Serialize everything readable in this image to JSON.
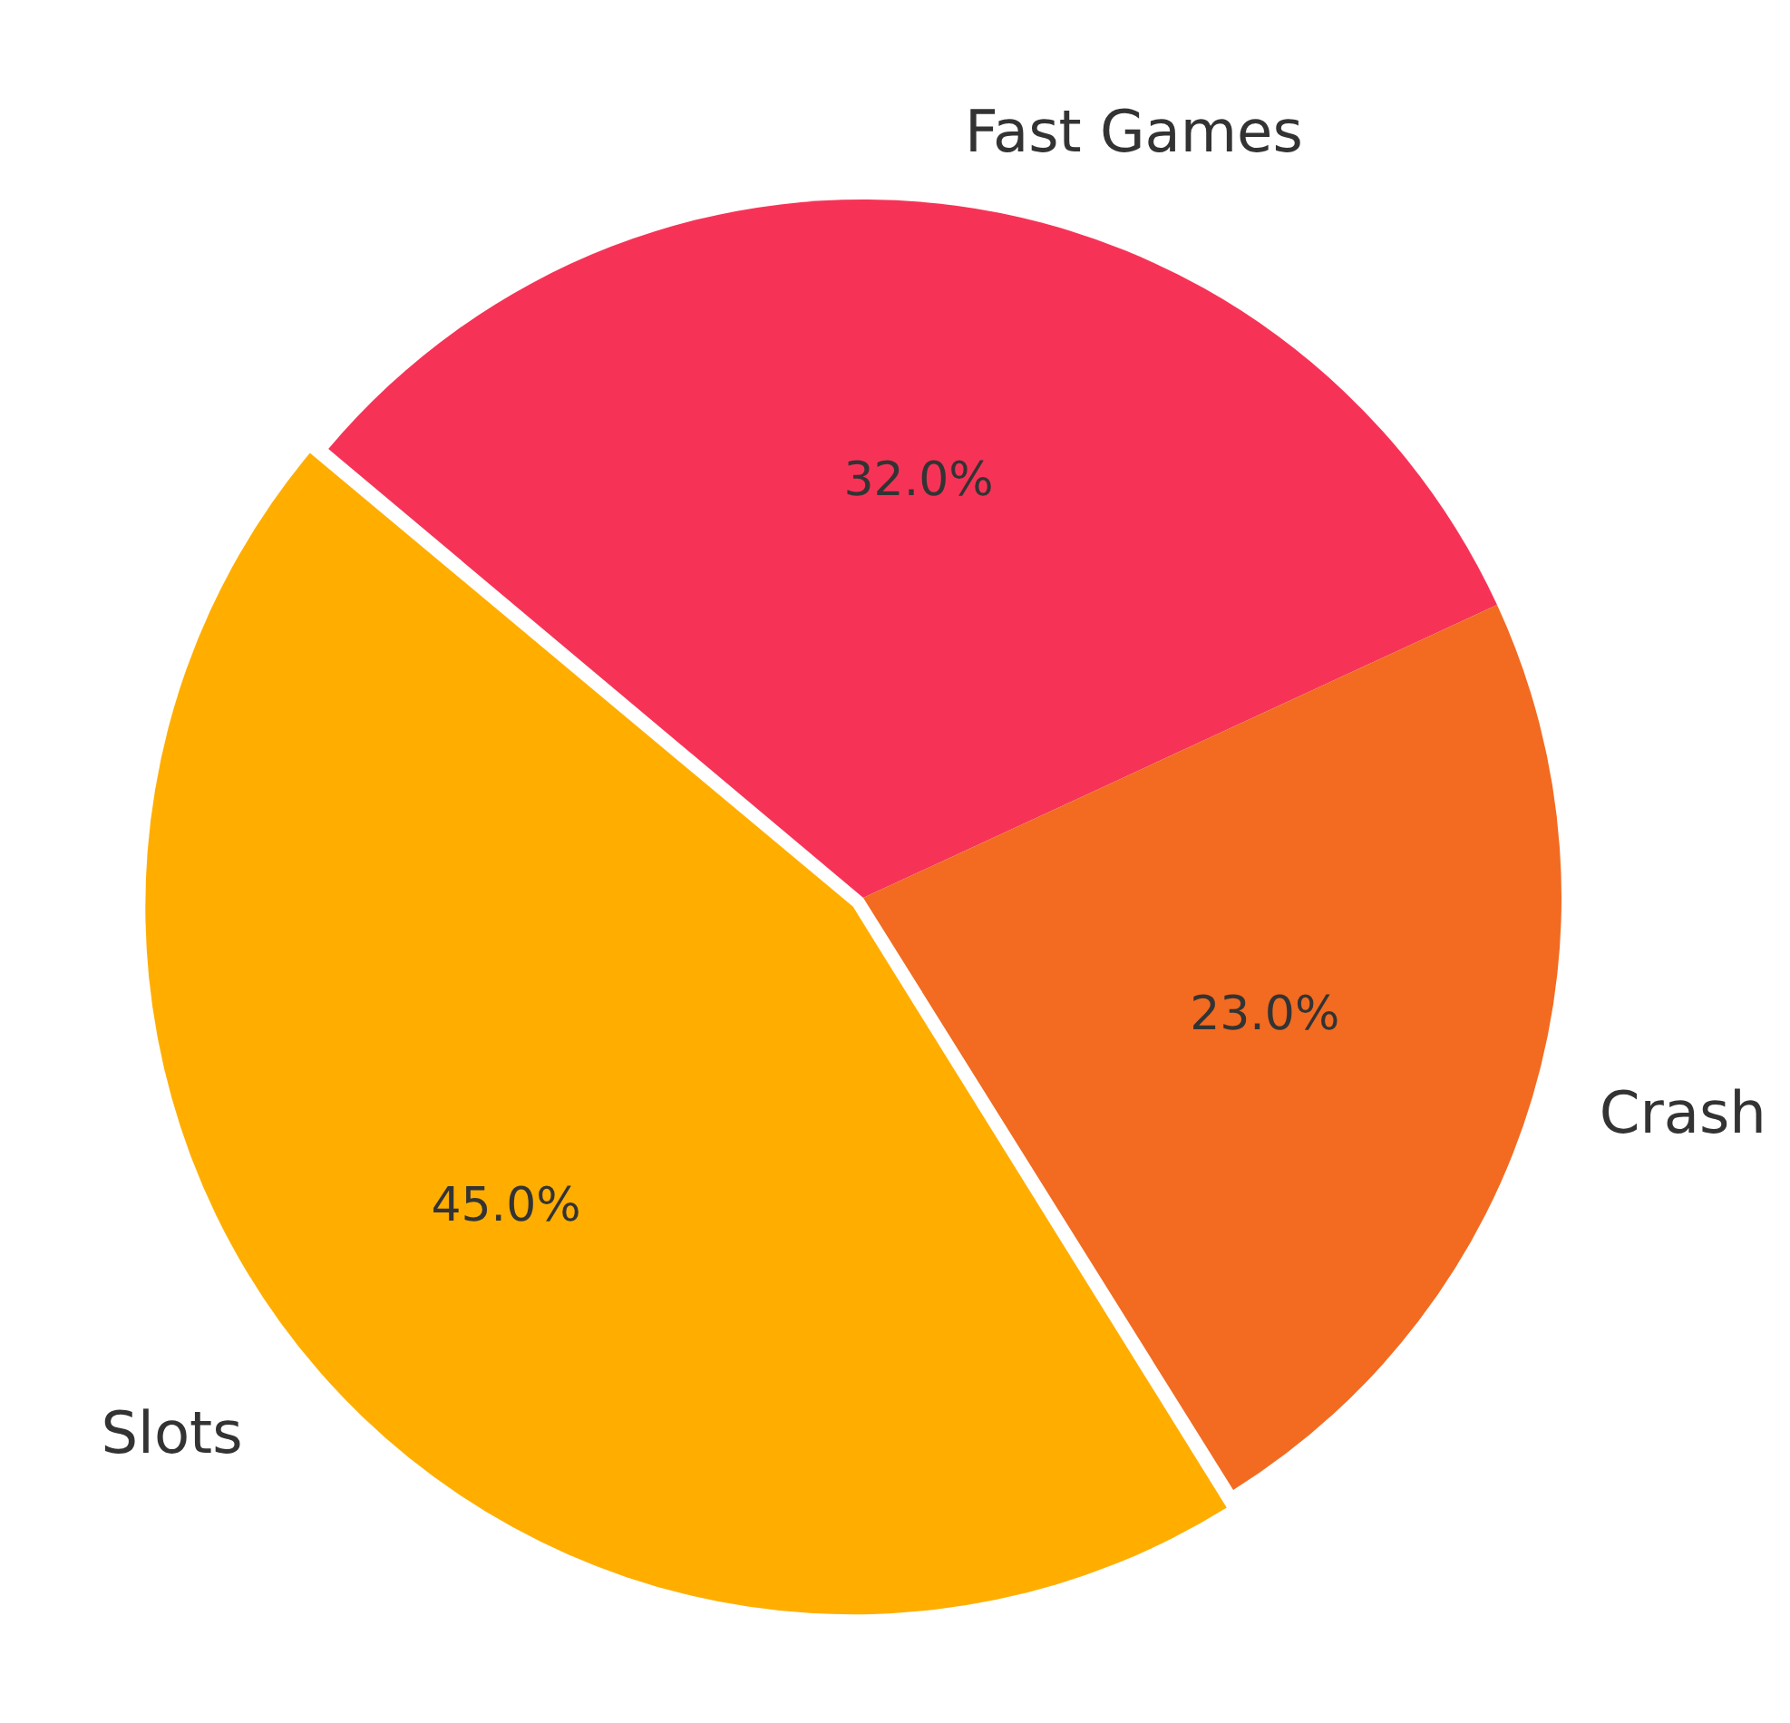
{
  "chart_data": {
    "type": "pie",
    "categories": [
      "Fast Games",
      "Crash",
      "Slots"
    ],
    "values": [
      32,
      23,
      45
    ],
    "colors": [
      "#f63357",
      "#f26b21",
      "#ffae00"
    ],
    "value_labels": [
      "32.0%",
      "23.0%",
      "45.0%"
    ],
    "legend": false
  }
}
